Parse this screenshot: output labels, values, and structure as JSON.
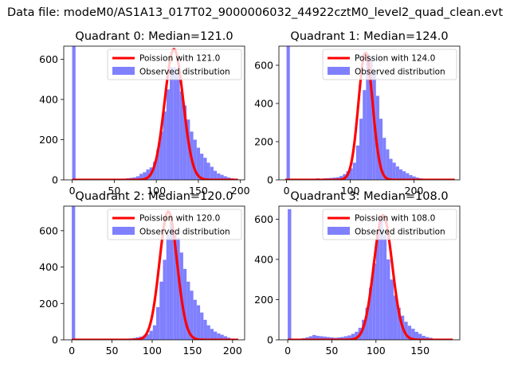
{
  "figure": {
    "suptitle": "Data file: modeM0/AS1A13_017T02_9000006032_44922cztM0_level2_quad_clean.evt"
  },
  "chart_data": [
    {
      "type": "bar",
      "title": "Quadrant 0: Median=121.0",
      "xlim": [
        -10,
        205
      ],
      "ylim": [
        0,
        665
      ],
      "xticks": [
        0,
        50,
        100,
        150,
        200
      ],
      "yticks": [
        0,
        200,
        400,
        600
      ],
      "legend": {
        "placement": "top-right",
        "line_label": "Poission with 121.0",
        "hist_label": "Observed distribution"
      },
      "colors": {
        "hist": "#8080ff",
        "line": "#ff0000"
      },
      "poisson_mean": 121,
      "poisson_peak": 650,
      "hist": {
        "bin_width": 4,
        "edges_start": 0,
        "values": [
          670,
          0,
          0,
          0,
          0,
          0,
          0,
          0,
          0,
          3,
          0,
          3,
          0,
          4,
          6,
          6,
          8,
          10,
          12,
          18,
          30,
          38,
          52,
          62,
          90,
          150,
          240,
          340,
          450,
          560,
          560,
          520,
          440,
          370,
          300,
          240,
          200,
          160,
          130,
          110,
          85,
          65,
          45,
          32,
          25,
          18,
          12,
          8,
          4,
          2
        ]
      }
    },
    {
      "type": "bar",
      "title": "Quadrant 1: Median=124.0",
      "xlim": [
        -12,
        272
      ],
      "ylim": [
        0,
        700
      ],
      "xticks": [
        0,
        100,
        200
      ],
      "yticks": [
        0,
        200,
        400,
        600
      ],
      "legend": {
        "placement": "top-right",
        "line_label": "Poission with 124.0",
        "hist_label": "Observed distribution"
      },
      "colors": {
        "hist": "#8080ff",
        "line": "#ff0000"
      },
      "poisson_mean": 124,
      "poisson_peak": 665,
      "hist": {
        "bin_width": 5.2,
        "edges_start": 0,
        "values": [
          700,
          0,
          0,
          0,
          3,
          5,
          3,
          6,
          4,
          8,
          6,
          8,
          9,
          10,
          12,
          14,
          20,
          30,
          45,
          60,
          90,
          180,
          320,
          470,
          660,
          640,
          560,
          440,
          320,
          220,
          160,
          110,
          90,
          70,
          55,
          45,
          35,
          25,
          18,
          12,
          8,
          6,
          4,
          3,
          2,
          2,
          1,
          0
        ]
      }
    },
    {
      "type": "bar",
      "title": "Quadrant 2: Median=120.0",
      "xlim": [
        -10,
        215
      ],
      "ylim": [
        0,
        735
      ],
      "xticks": [
        0,
        50,
        100,
        150,
        200
      ],
      "yticks": [
        0,
        200,
        400,
        600
      ],
      "legend": {
        "placement": "top-right",
        "line_label": "Poission with 120.0",
        "hist_label": "Observed distribution"
      },
      "colors": {
        "hist": "#8080ff",
        "line": "#ff0000"
      },
      "poisson_mean": 120,
      "poisson_peak": 705,
      "hist": {
        "bin_width": 4.2,
        "edges_start": 0,
        "values": [
          735,
          0,
          0,
          0,
          0,
          0,
          0,
          0,
          0,
          0,
          0,
          0,
          2,
          3,
          4,
          5,
          6,
          8,
          10,
          14,
          18,
          24,
          30,
          50,
          80,
          180,
          320,
          440,
          580,
          650,
          600,
          560,
          480,
          390,
          320,
          270,
          220,
          190,
          150,
          110,
          80,
          60,
          45,
          35,
          28,
          20,
          12,
          6
        ]
      }
    },
    {
      "type": "bar",
      "title": "Quadrant 3: Median=108.0",
      "xlim": [
        -10,
        195
      ],
      "ylim": [
        0,
        665
      ],
      "xticks": [
        0,
        50,
        100,
        150
      ],
      "yticks": [
        0,
        200,
        400,
        600
      ],
      "legend": {
        "placement": "top-right",
        "line_label": "Poission with 108.0",
        "hist_label": "Observed distribution"
      },
      "colors": {
        "hist": "#8080ff",
        "line": "#ff0000"
      },
      "poisson_mean": 108,
      "poisson_peak": 620,
      "hist": {
        "bin_width": 4,
        "edges_start": 0,
        "values": [
          650,
          0,
          0,
          5,
          8,
          12,
          18,
          24,
          20,
          18,
          16,
          14,
          12,
          10,
          12,
          14,
          18,
          22,
          30,
          40,
          60,
          100,
          160,
          260,
          380,
          530,
          600,
          520,
          400,
          300,
          220,
          160,
          120,
          90,
          70,
          55,
          40,
          30,
          20,
          14,
          10,
          6,
          4,
          2,
          2,
          1
        ]
      }
    }
  ]
}
